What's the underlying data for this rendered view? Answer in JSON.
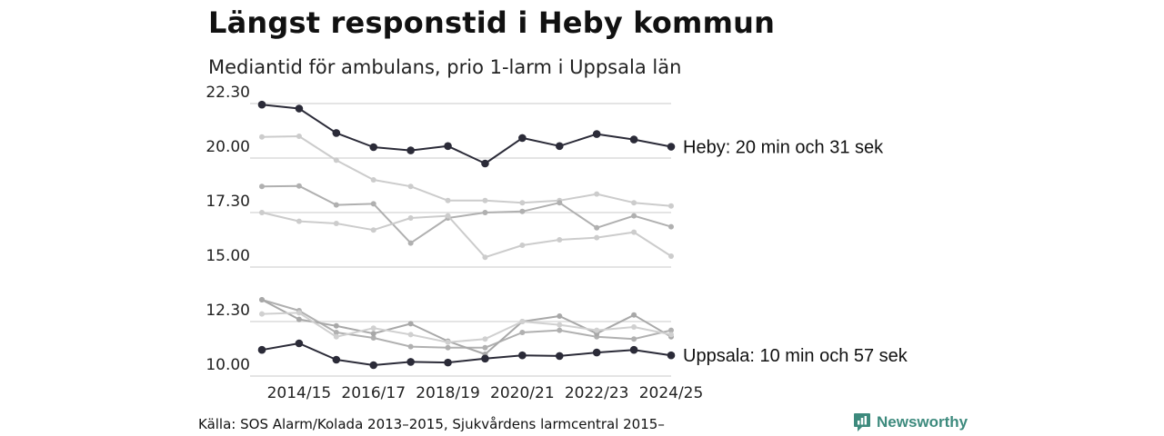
{
  "title": "Längst responstid i Heby kommun",
  "subtitle": "Mediantid för ambulans, prio 1-larm i Uppsala län",
  "source": "Källa: SOS Alarm/Kolada 2013–2015, Sjukvårdens larmcentral 2015–",
  "brand": {
    "name": "Newsworthy",
    "color": "#3d8a7d",
    "icon": "newsworthy-logo-icon"
  },
  "chart_data": {
    "type": "line",
    "y_unit": "minutes",
    "ylim": [
      10.0,
      22.5
    ],
    "y_ticks": [
      {
        "value": 10.0,
        "label": "10.00"
      },
      {
        "value": 12.5,
        "label": "12.30"
      },
      {
        "value": 15.0,
        "label": "15.00"
      },
      {
        "value": 17.5,
        "label": "17.30"
      },
      {
        "value": 20.0,
        "label": "20.00"
      },
      {
        "value": 22.5,
        "label": "22.30"
      }
    ],
    "x": [
      "2013/14",
      "2014/15",
      "2015/16",
      "2016/17",
      "2017/18",
      "2018/19",
      "2019/20",
      "2020/21",
      "2021/22",
      "2022/23",
      "2023/24",
      "2024/25"
    ],
    "x_tick_labels": [
      "2014/15",
      "2016/17",
      "2018/19",
      "2020/21",
      "2022/23",
      "2024/25"
    ],
    "grid": true,
    "series": [
      {
        "values": [
          20.97,
          21.0,
          19.9,
          19.0,
          18.7,
          18.05,
          18.05,
          17.95,
          18.05,
          18.35,
          17.95,
          17.8
        ],
        "color": "#cccccc",
        "highlight": false
      },
      {
        "values": [
          18.7,
          18.72,
          17.85,
          17.9,
          16.1,
          17.25,
          17.5,
          17.55,
          17.95,
          16.8,
          17.35,
          16.85
        ],
        "color": "#b0b0b0",
        "highlight": false
      },
      {
        "values": [
          17.5,
          17.1,
          17.0,
          16.7,
          17.25,
          17.35,
          15.45,
          16.0,
          16.25,
          16.35,
          16.6,
          15.5
        ],
        "color": "#cccccc",
        "highlight": false
      },
      {
        "values": [
          13.5,
          13.0,
          12.0,
          11.75,
          11.35,
          11.3,
          11.3,
          12.0,
          12.1,
          11.8,
          11.7,
          12.1
        ],
        "color": "#b0b0b0",
        "highlight": false
      },
      {
        "values": [
          13.5,
          12.6,
          12.3,
          11.95,
          12.4,
          11.6,
          11.0,
          12.5,
          12.75,
          11.95,
          12.8,
          11.8
        ],
        "color": "#a8a8a8",
        "highlight": false
      },
      {
        "values": [
          12.85,
          12.9,
          11.8,
          12.2,
          11.9,
          11.55,
          11.7,
          12.5,
          12.35,
          12.1,
          12.25,
          11.9
        ],
        "color": "#d0d0d0",
        "highlight": false
      },
      {
        "name": "Heby: 20 min och 31 sek",
        "values": [
          22.45,
          22.27,
          21.15,
          20.5,
          20.35,
          20.55,
          19.75,
          20.92,
          20.55,
          21.1,
          20.85,
          20.52
        ],
        "color": "#2b2b38",
        "highlight": true
      },
      {
        "name": "Uppsala: 10 min och 57 sek",
        "values": [
          11.2,
          11.5,
          10.75,
          10.5,
          10.65,
          10.62,
          10.8,
          10.95,
          10.92,
          11.08,
          11.2,
          10.95
        ],
        "color": "#2b2b38",
        "highlight": true
      }
    ]
  }
}
